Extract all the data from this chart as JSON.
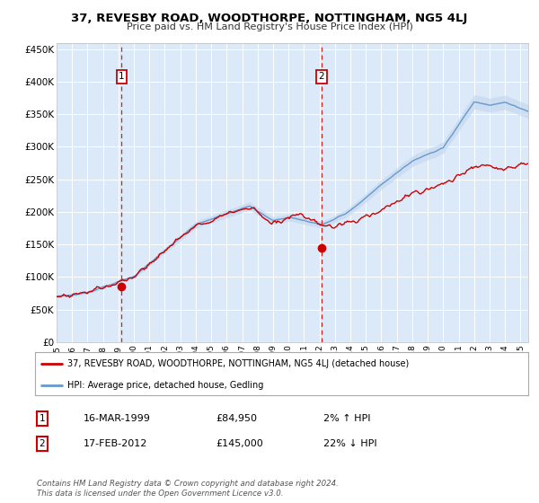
{
  "title": "37, REVESBY ROAD, WOODTHORPE, NOTTINGHAM, NG5 4LJ",
  "subtitle": "Price paid vs. HM Land Registry's House Price Index (HPI)",
  "background_color": "#ffffff",
  "plot_bg_color": "#dce9f8",
  "ylim": [
    0,
    460000
  ],
  "yticks": [
    0,
    50000,
    100000,
    150000,
    200000,
    250000,
    300000,
    350000,
    400000,
    450000
  ],
  "ytick_labels": [
    "£0",
    "£50K",
    "£100K",
    "£150K",
    "£200K",
    "£250K",
    "£300K",
    "£350K",
    "£400K",
    "£450K"
  ],
  "red_line_color": "#cc0000",
  "blue_line_color": "#6699cc",
  "blue_fill_color": "#c6d9f0",
  "marker1_year": 1999.21,
  "marker1_value": 84950,
  "marker2_year": 2012.12,
  "marker2_value": 145000,
  "vline1_year": 1999.21,
  "vline2_year": 2012.12,
  "legend_label_red": "37, REVESBY ROAD, WOODTHORPE, NOTTINGHAM, NG5 4LJ (detached house)",
  "legend_label_blue": "HPI: Average price, detached house, Gedling",
  "note1_date": "16-MAR-1999",
  "note1_price": "£84,950",
  "note1_hpi": "2% ↑ HPI",
  "note2_date": "17-FEB-2012",
  "note2_price": "£145,000",
  "note2_hpi": "22% ↓ HPI",
  "footer": "Contains HM Land Registry data © Crown copyright and database right 2024.\nThis data is licensed under the Open Government Licence v3.0.",
  "xlim_start": 1995,
  "xlim_end": 2025.5
}
